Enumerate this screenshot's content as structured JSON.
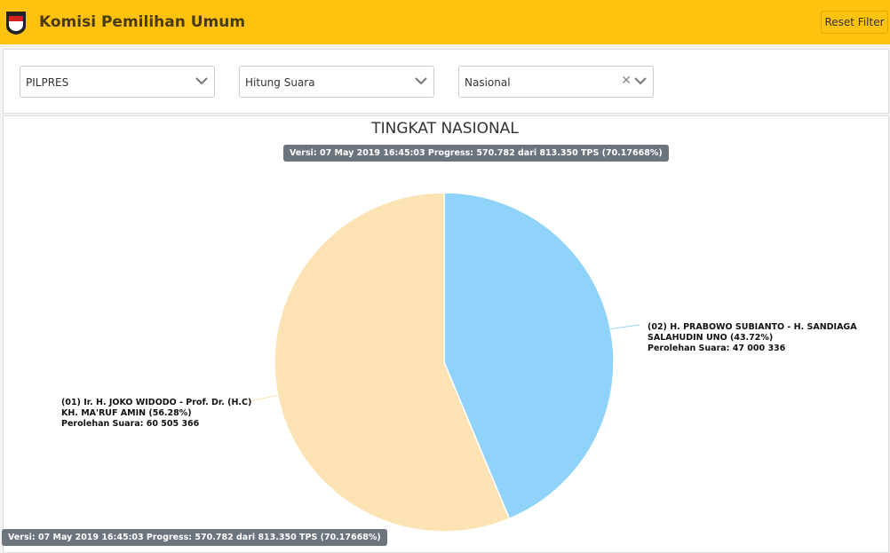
{
  "header": {
    "title": "Komisi Pemilihan Umum",
    "reset_label": "Reset Filter"
  },
  "filters": [
    {
      "value": "PILPRES"
    },
    {
      "value": "Hitung Suara"
    },
    {
      "value": "Nasional",
      "clearable": true
    }
  ],
  "chart_data": {
    "type": "pie",
    "title": "TINGKAT NASIONAL",
    "subtitle": "Versi: 07 May 2019 16:45:03 Progress: 570.782 dari 813.350 TPS (70.17668%)",
    "slices": [
      {
        "line1": "(02) H. PRABOWO SUBIANTO - H. SANDIAGA",
        "line2": "SALAHUDIN UNO (43.72%)",
        "line3": "Perolehan Suara: 47 000 336",
        "percent": 43.72,
        "votes": 47000336,
        "color": "#90d3fa"
      },
      {
        "line1": "(01) Ir. H. JOKO WIDODO - Prof. Dr. (H.C)",
        "line2": "KH. MA'RUF AMIN (56.28%)",
        "line3": "Perolehan Suara: 60 505 366",
        "percent": 56.28,
        "votes": 60505366,
        "color": "#fde3b4"
      }
    ]
  },
  "footer_tooltip": "Versi: 07 May 2019 16:45:03 Progress: 570.782 dari 813.350 TPS (70.17668%)"
}
